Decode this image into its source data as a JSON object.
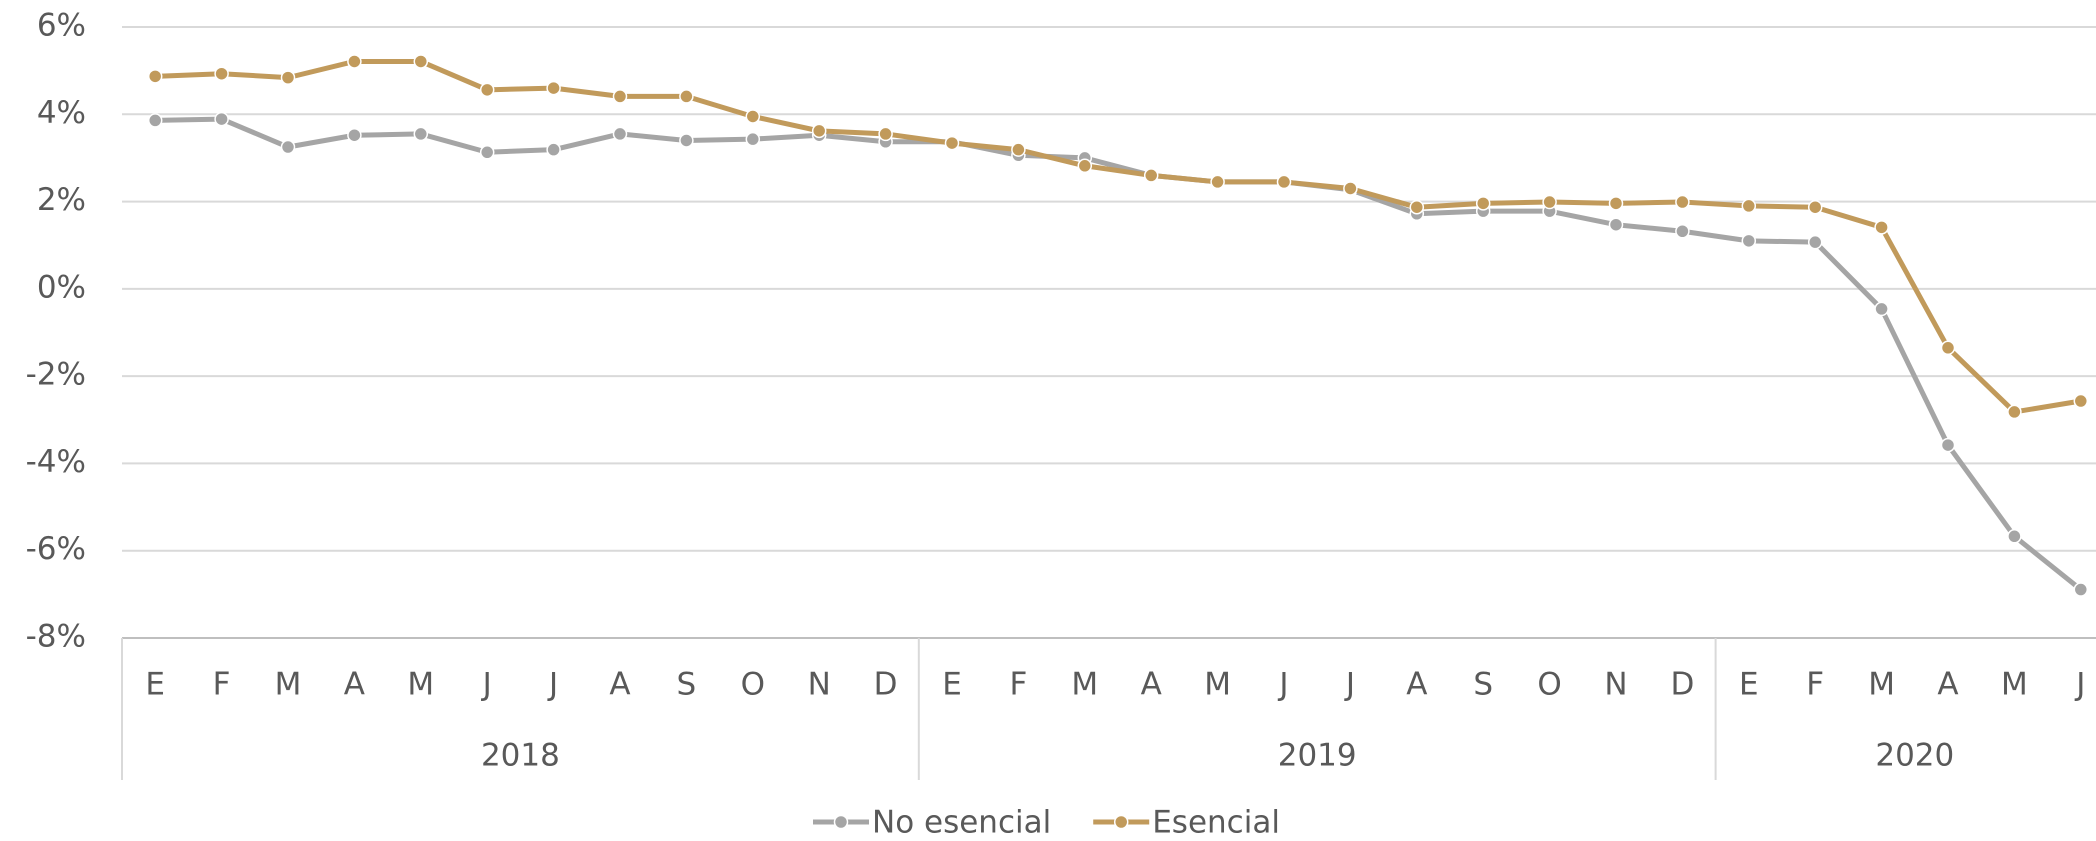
{
  "chart_data": {
    "type": "line",
    "groups": [
      {
        "name": "2018",
        "categories": [
          "E",
          "F",
          "M",
          "A",
          "M",
          "J",
          "J",
          "A",
          "S",
          "O",
          "N",
          "D"
        ]
      },
      {
        "name": "2019",
        "categories": [
          "E",
          "F",
          "M",
          "A",
          "M",
          "J",
          "J",
          "A",
          "S",
          "O",
          "N",
          "D"
        ]
      },
      {
        "name": "2020",
        "categories": [
          "E",
          "F",
          "M",
          "A",
          "M",
          "J"
        ]
      }
    ],
    "series": [
      {
        "name": "No esencial",
        "color": "#a5a5a5",
        "values": [
          3.86,
          3.89,
          3.25,
          3.52,
          3.55,
          3.13,
          3.19,
          3.55,
          3.4,
          3.43,
          3.52,
          3.37,
          3.37,
          3.06,
          3.0,
          2.6,
          2.45,
          2.45,
          2.27,
          1.72,
          1.78,
          1.78,
          1.47,
          1.32,
          1.1,
          1.07,
          -0.46,
          -3.58,
          -5.67,
          -6.89
        ]
      },
      {
        "name": "Esencial",
        "color": "#c19a5b",
        "values": [
          4.87,
          4.93,
          4.84,
          5.21,
          5.21,
          4.56,
          4.6,
          4.41,
          4.41,
          3.95,
          3.62,
          3.55,
          3.34,
          3.19,
          2.82,
          2.6,
          2.45,
          2.45,
          2.3,
          1.87,
          1.96,
          1.99,
          1.96,
          1.99,
          1.9,
          1.87,
          1.41,
          -1.35,
          -2.82,
          -2.57
        ]
      }
    ],
    "ylim": [
      -8,
      6
    ],
    "yticks": [
      {
        "value": -8,
        "label": "-8%"
      },
      {
        "value": -6,
        "label": "-6%"
      },
      {
        "value": -4,
        "label": "-4%"
      },
      {
        "value": -2,
        "label": "-2%"
      },
      {
        "value": 0,
        "label": "0%"
      },
      {
        "value": 2,
        "label": "2%"
      },
      {
        "value": 4,
        "label": "4%"
      },
      {
        "value": 6,
        "label": "6%"
      }
    ],
    "grid": true,
    "legend": "bottom"
  }
}
